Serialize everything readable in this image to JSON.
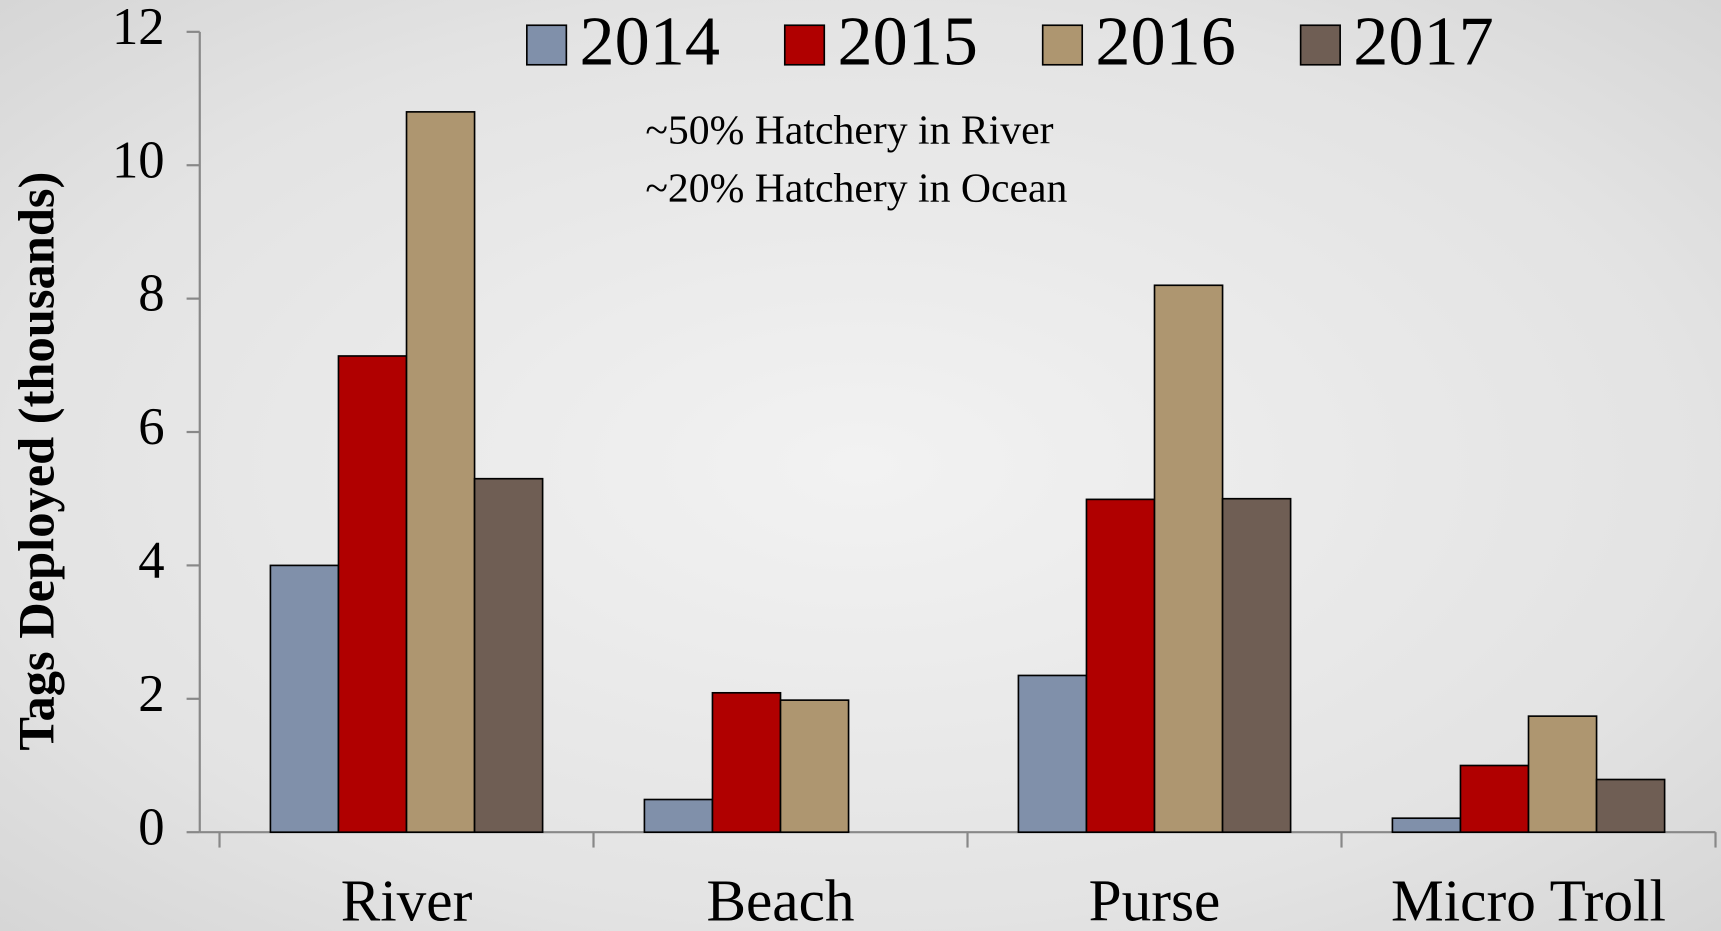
{
  "chart_data": {
    "type": "bar",
    "y_label": "Tags Deployed (thousands)",
    "annotations": [
      "~50% Hatchery in River",
      "~20% Hatchery in Ocean"
    ],
    "categories": [
      "River",
      "Beach",
      "Purse",
      "Micro Troll"
    ],
    "series": [
      {
        "name": "2014",
        "color": "#8090aa",
        "values": [
          4.0,
          0.49,
          2.35,
          0.21
        ]
      },
      {
        "name": "2015",
        "color": "#b00000",
        "values": [
          7.14,
          2.09,
          4.99,
          1.0
        ]
      },
      {
        "name": "2016",
        "color": "#ae9670",
        "values": [
          10.8,
          1.98,
          8.2,
          1.74
        ]
      },
      {
        "name": "2017",
        "color": "#6f5e54",
        "values": [
          5.3,
          null,
          5.0,
          0.79
        ]
      }
    ],
    "ylim": [
      0,
      12
    ],
    "yticks": [
      0,
      2,
      4,
      6,
      8,
      10,
      12
    ],
    "legend": "top"
  }
}
